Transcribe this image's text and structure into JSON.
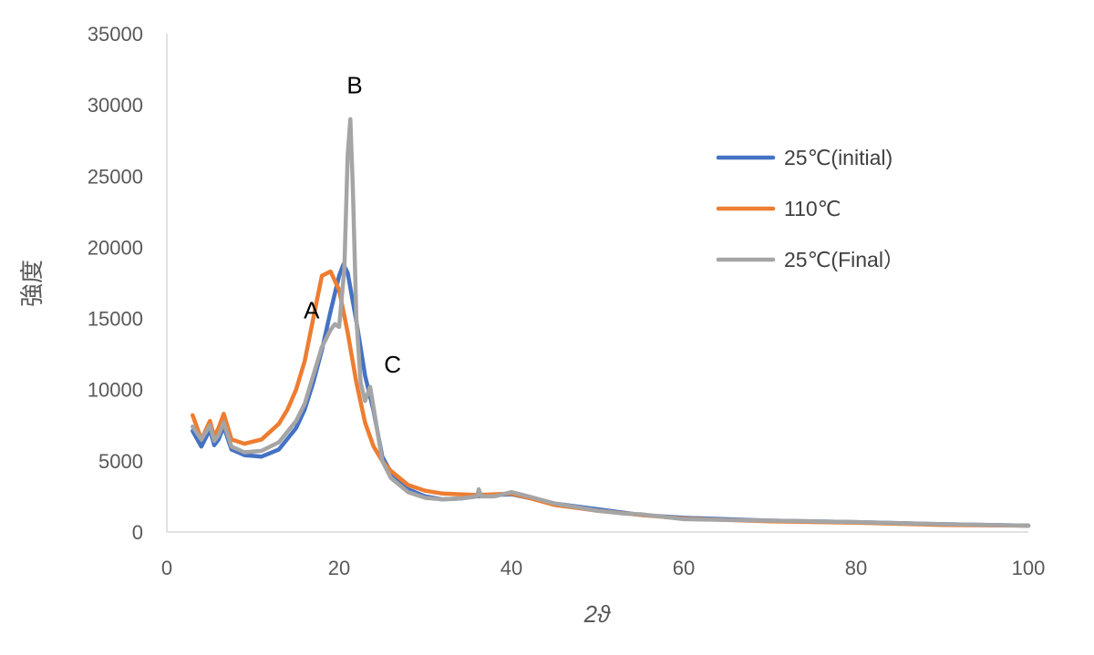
{
  "chart_data": {
    "type": "line",
    "title": "",
    "xlabel": "2ϑ",
    "ylabel": "強度",
    "xlim": [
      0,
      100
    ],
    "ylim": [
      0,
      35000
    ],
    "xticks": [
      0,
      20,
      40,
      60,
      80,
      100
    ],
    "xtick_labels": [
      "0",
      "20",
      "40",
      "60",
      "80",
      "100"
    ],
    "yticks": [
      0,
      5000,
      10000,
      15000,
      20000,
      25000,
      30000,
      35000
    ],
    "ytick_labels": [
      "0",
      "5000",
      "10000",
      "15000",
      "20000",
      "25000",
      "30000",
      "35000"
    ],
    "grid": false,
    "legend_position": "right",
    "series": [
      {
        "name": "25℃(initial)",
        "color": "#4472C4",
        "x": [
          3,
          4,
          5,
          5.5,
          6,
          6.6,
          7.5,
          9,
          11,
          13,
          15,
          16,
          17,
          18,
          19,
          20,
          20.5,
          21,
          22,
          23,
          24,
          25,
          26,
          28,
          30,
          32,
          34,
          36,
          38,
          40,
          42,
          45,
          50,
          55,
          60,
          70,
          80,
          90,
          100
        ],
        "y": [
          7100,
          6000,
          7200,
          6100,
          6500,
          7400,
          5800,
          5400,
          5300,
          5800,
          7300,
          8600,
          10500,
          12800,
          15500,
          18000,
          18800,
          18200,
          14800,
          11000,
          8500,
          5300,
          4200,
          3000,
          2500,
          2300,
          2350,
          2500,
          2600,
          2650,
          2400,
          2000,
          1600,
          1200,
          1000,
          800,
          700,
          550,
          450
        ]
      },
      {
        "name": "110℃",
        "color": "#ED7D31",
        "x": [
          3,
          4,
          5,
          5.5,
          6,
          6.6,
          7.5,
          9,
          11,
          13,
          14,
          15,
          16,
          17,
          18,
          19,
          20,
          21,
          22,
          23,
          24,
          25,
          26,
          28,
          30,
          32,
          34,
          36,
          38,
          40,
          42,
          45,
          50,
          55,
          60,
          70,
          80,
          90,
          100
        ],
        "y": [
          8200,
          6500,
          7800,
          6700,
          7300,
          8300,
          6500,
          6200,
          6500,
          7600,
          8600,
          10000,
          12000,
          15000,
          18000,
          18300,
          17000,
          14000,
          10500,
          7700,
          6000,
          5000,
          4300,
          3300,
          2900,
          2700,
          2650,
          2600,
          2650,
          2700,
          2400,
          1900,
          1500,
          1200,
          950,
          750,
          650,
          500,
          450
        ]
      },
      {
        "name": "25℃(Final）",
        "color": "#A5A5A5",
        "x": [
          3,
          4,
          5,
          5.5,
          6,
          6.6,
          7.5,
          9,
          11,
          13,
          15,
          16,
          17,
          18,
          19,
          19.5,
          20,
          20.6,
          21,
          21.3,
          21.6,
          22,
          22.5,
          23,
          23.6,
          24.2,
          25,
          26,
          28,
          30,
          32,
          34,
          36,
          36.2,
          36.5,
          38,
          40,
          42,
          45,
          50,
          53,
          55,
          60,
          70,
          80,
          90,
          100
        ],
        "y": [
          7400,
          6500,
          7500,
          6400,
          6800,
          7700,
          6000,
          5600,
          5700,
          6300,
          7800,
          9000,
          11000,
          13000,
          14200,
          14600,
          14400,
          18500,
          26500,
          29000,
          24000,
          15000,
          10500,
          9200,
          10200,
          8000,
          5000,
          3800,
          2800,
          2400,
          2300,
          2350,
          2500,
          3000,
          2500,
          2500,
          2800,
          2500,
          2000,
          1500,
          1300,
          1250,
          900,
          800,
          700,
          550,
          450
        ]
      }
    ],
    "annotations": [
      {
        "text": "A",
        "x": 16.8,
        "y": 15000
      },
      {
        "text": "B",
        "x": 21.8,
        "y": 30800
      },
      {
        "text": "C",
        "x": 26.2,
        "y": 11200
      }
    ]
  }
}
